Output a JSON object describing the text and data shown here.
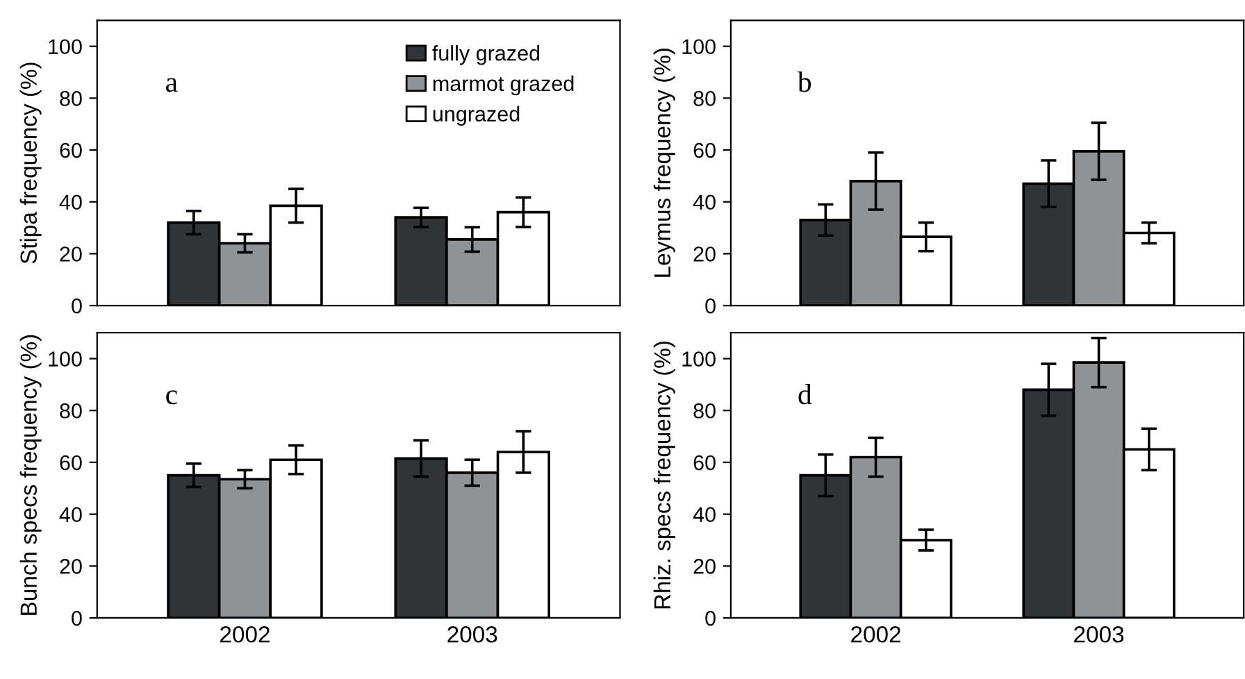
{
  "chart_data": [
    {
      "type": "bar",
      "ylabel": "Stipa frequency (%)",
      "categories": [
        "2002",
        "2003"
      ],
      "ylim": [
        0,
        110
      ],
      "yticks": [
        0,
        20,
        40,
        60,
        80,
        100
      ],
      "tick_labels": "y",
      "legend": "top right",
      "grid": false,
      "annotations": [
        "a"
      ],
      "series": [
        {
          "name": "fully grazed",
          "color": "#303437",
          "values": [
            32,
            34
          ],
          "errors": [
            4.5,
            3.7
          ]
        },
        {
          "name": "marmot grazed",
          "color": "#8f9396",
          "values": [
            24,
            25.5
          ],
          "errors": [
            3.5,
            4.7
          ]
        },
        {
          "name": "ungrazed",
          "color": "#ffffff",
          "values": [
            38.5,
            36
          ],
          "errors": [
            6.5,
            5.7
          ]
        }
      ]
    },
    {
      "type": "bar",
      "ylabel": "Leymus frequency (%)",
      "categories": [
        "2002",
        "2003"
      ],
      "ylim": [
        0,
        110
      ],
      "yticks": [
        0,
        20,
        40,
        60,
        80,
        100
      ],
      "tick_labels": "y",
      "grid": false,
      "annotations": [
        "b"
      ],
      "series": [
        {
          "color": "#303437",
          "values": [
            33,
            47
          ],
          "errors": [
            6,
            9
          ]
        },
        {
          "color": "#8f9396",
          "values": [
            48,
            59.5
          ],
          "errors": [
            11,
            11
          ]
        },
        {
          "color": "#ffffff",
          "values": [
            26.5,
            28
          ],
          "errors": [
            5.5,
            4
          ]
        }
      ]
    },
    {
      "type": "bar",
      "ylabel": "Bunch specs frequency (%)",
      "categories": [
        "2002",
        "2003"
      ],
      "ylim": [
        0,
        110
      ],
      "yticks": [
        0,
        20,
        40,
        60,
        80,
        100
      ],
      "grid": false,
      "annotations": [
        "c"
      ],
      "series": [
        {
          "color": "#303437",
          "values": [
            55,
            61.5
          ],
          "errors": [
            4.5,
            7
          ]
        },
        {
          "color": "#8f9396",
          "values": [
            53.5,
            56
          ],
          "errors": [
            3.5,
            5
          ]
        },
        {
          "color": "#ffffff",
          "values": [
            61,
            64
          ],
          "errors": [
            5.5,
            8
          ]
        }
      ]
    },
    {
      "type": "bar",
      "ylabel": "Rhiz. specs frequency (%)",
      "categories": [
        "2002",
        "2003"
      ],
      "ylim": [
        0,
        110
      ],
      "yticks": [
        0,
        20,
        40,
        60,
        80,
        100
      ],
      "grid": false,
      "annotations": [
        "d"
      ],
      "series": [
        {
          "color": "#303437",
          "values": [
            55,
            88
          ],
          "errors": [
            8,
            10
          ]
        },
        {
          "color": "#8f9396",
          "values": [
            62,
            98.5
          ],
          "errors": [
            7.5,
            9.5
          ]
        },
        {
          "color": "#ffffff",
          "values": [
            30,
            65
          ],
          "errors": [
            4,
            8
          ]
        }
      ]
    }
  ]
}
